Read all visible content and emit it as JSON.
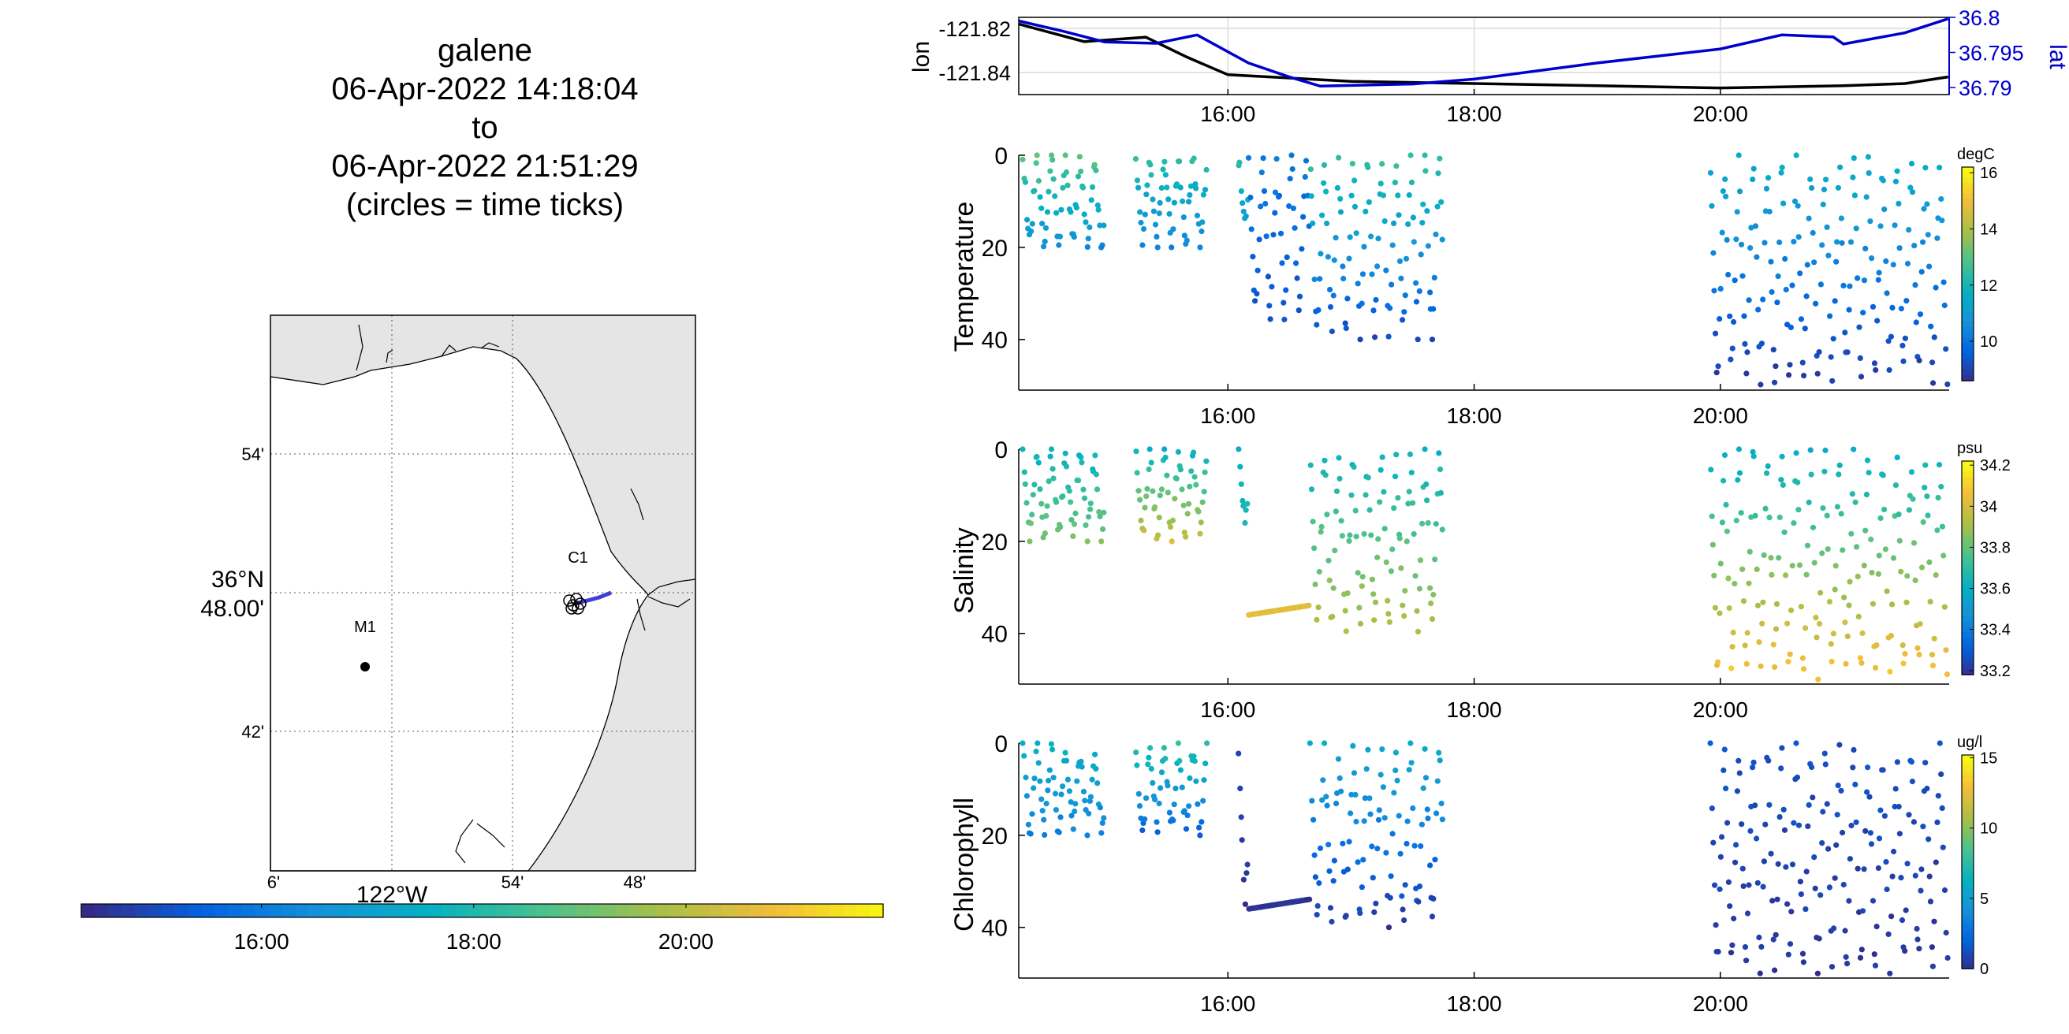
{
  "title": {
    "line1": "galene",
    "line2": "06-Apr-2022 14:18:04",
    "line3": "to",
    "line4": "06-Apr-2022 21:51:29",
    "line5": "(circles = time ticks)"
  },
  "map": {
    "lat_ticks": [
      "54'",
      "36°N 48.00'",
      "42'"
    ],
    "lon_ticks": [
      "6'",
      "122°W",
      "54'",
      "48'"
    ],
    "stations": [
      {
        "label": "M1",
        "lon": -122.04,
        "lat": 36.747
      },
      {
        "label": "C1",
        "lon": -121.845,
        "lat": 36.795
      }
    ],
    "colors": {
      "land": "#e5e5e5",
      "water": "#ffffff",
      "track": "#3f3fd6"
    }
  },
  "time_colorbar": {
    "ticks": [
      "16:00",
      "18:00",
      "20:00"
    ],
    "colormap": "parula"
  },
  "chart_data": [
    {
      "type": "line",
      "x_range": [
        "14:18:04",
        "21:51:29"
      ],
      "xticks": [
        "16:00",
        "18:00",
        "20:00"
      ],
      "ylabel": "lon",
      "ylabel_right": "lat",
      "ylim": [
        -121.85,
        -121.815
      ],
      "yticks": [
        "-121.82",
        "-121.84"
      ],
      "ylim_right": [
        36.789,
        36.8
      ],
      "yticks_right": [
        "36.8",
        "36.795",
        "36.79"
      ],
      "grid": true,
      "series": [
        {
          "axis": "left",
          "color": "#000000",
          "x": [
            "14:18",
            "14:50",
            "15:20",
            "15:40",
            "16:00",
            "17:00",
            "18:00",
            "19:00",
            "20:00",
            "21:00",
            "21:30",
            "21:51"
          ],
          "values": [
            -121.818,
            -121.826,
            -121.824,
            -121.833,
            -121.841,
            -121.844,
            -121.845,
            -121.846,
            -121.847,
            -121.846,
            -121.845,
            -121.842
          ]
        },
        {
          "axis": "right",
          "color": "#0000cc",
          "x": [
            "14:18",
            "14:40",
            "15:00",
            "15:25",
            "15:45",
            "16:10",
            "16:30",
            "16:45",
            "17:30",
            "18:00",
            "19:00",
            "20:00",
            "20:30",
            "20:55",
            "21:00",
            "21:30",
            "21:51"
          ],
          "values": [
            36.7995,
            36.798,
            36.7965,
            36.7963,
            36.7975,
            36.7935,
            36.7915,
            36.7902,
            36.7905,
            36.7912,
            36.7935,
            36.7955,
            36.7975,
            36.7972,
            36.7962,
            36.7978,
            36.7998
          ]
        }
      ]
    },
    {
      "type": "scatter",
      "ylabel": "Temperature",
      "units": "degC",
      "y_reversed": true,
      "ylim": [
        0,
        51
      ],
      "yticks": [
        "0",
        "20",
        "40"
      ],
      "xticks": [
        "16:00",
        "18:00",
        "20:00"
      ],
      "clim": [
        8.6,
        16.2
      ],
      "cbar_ticks": [
        "16",
        "14",
        "12",
        "10"
      ],
      "colormap": "parula",
      "dive_windows": [
        {
          "start": "14:20",
          "end": "15:00",
          "max_depth": 20,
          "value_top": 13.2,
          "value_bottom": 10.6
        },
        {
          "start": "15:15",
          "end": "15:50",
          "max_depth": 20,
          "value_top": 12.6,
          "value_bottom": 10.4
        },
        {
          "start": "16:05",
          "end": "16:10",
          "max_depth": 16,
          "value_top": 12.4,
          "value_bottom": 11.2
        },
        {
          "start": "16:10",
          "end": "16:40",
          "max_depth": 36,
          "value_top": 10.2,
          "value_bottom": 9.4
        },
        {
          "start": "16:40",
          "end": "17:45",
          "max_depth": 40,
          "value_top": 12.6,
          "value_bottom": 9.2
        },
        {
          "start": "19:55",
          "end": "21:51",
          "max_depth": 50,
          "value_top": 11.8,
          "value_bottom": 8.8
        }
      ]
    },
    {
      "type": "scatter",
      "ylabel": "Salinity",
      "units": "psu",
      "y_reversed": true,
      "ylim": [
        0,
        51
      ],
      "yticks": [
        "0",
        "20",
        "40"
      ],
      "xticks": [
        "16:00",
        "18:00",
        "20:00"
      ],
      "clim": [
        33.18,
        34.22
      ],
      "cbar_ticks": [
        "34.2",
        "34",
        "33.8",
        "33.6",
        "33.4",
        "33.2"
      ],
      "colormap": "parula",
      "dive_windows": [
        {
          "start": "14:20",
          "end": "15:00",
          "max_depth": 20,
          "value_top": 33.62,
          "value_bottom": 33.85
        },
        {
          "start": "15:15",
          "end": "15:50",
          "max_depth": 20,
          "value_top": 33.62,
          "value_bottom": 34.0
        },
        {
          "start": "16:05",
          "end": "16:10",
          "max_depth": 16,
          "value_top": 33.6,
          "value_bottom": 33.7
        },
        {
          "start": "16:10",
          "end": "16:40",
          "max_depth": 36,
          "value_top": 33.95,
          "value_bottom": 34.05
        },
        {
          "start": "16:40",
          "end": "17:45",
          "max_depth": 40,
          "value_top": 33.62,
          "value_bottom": 33.95
        },
        {
          "start": "19:55",
          "end": "21:51",
          "max_depth": 50,
          "value_top": 33.6,
          "value_bottom": 34.1
        }
      ]
    },
    {
      "type": "scatter",
      "ylabel": "Chlorophyll",
      "units": "ug/l",
      "y_reversed": true,
      "ylim": [
        0,
        51
      ],
      "yticks": [
        "0",
        "20",
        "40"
      ],
      "xticks": [
        "16:00",
        "18:00",
        "20:00"
      ],
      "clim": [
        0,
        15.2
      ],
      "cbar_ticks": [
        "15",
        "10",
        "5",
        "0"
      ],
      "colormap": "parula",
      "dive_windows": [
        {
          "start": "14:20",
          "end": "15:00",
          "max_depth": 20,
          "value_top": 6.5,
          "value_bottom": 3.5
        },
        {
          "start": "15:15",
          "end": "15:50",
          "max_depth": 20,
          "value_top": 8.0,
          "value_bottom": 2.0
        },
        {
          "start": "16:05",
          "end": "16:10",
          "max_depth": 36,
          "value_top": 1.5,
          "value_bottom": 0.3
        },
        {
          "start": "16:10",
          "end": "16:40",
          "max_depth": 36,
          "value_top": 0.4,
          "value_bottom": 0.3
        },
        {
          "start": "16:40",
          "end": "17:45",
          "max_depth": 40,
          "value_top": 6.0,
          "value_bottom": 0.5
        },
        {
          "start": "19:55",
          "end": "21:51",
          "max_depth": 50,
          "value_top": 1.5,
          "value_bottom": 0.4
        }
      ]
    }
  ]
}
